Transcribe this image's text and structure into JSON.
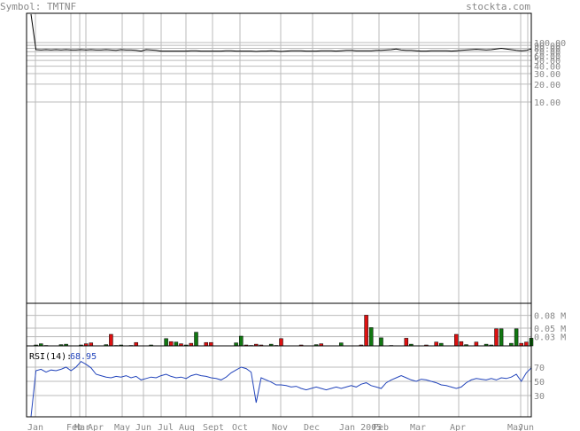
{
  "header": {
    "symbol_label": "Symbol: TMTNF",
    "site": "stockta.com"
  },
  "colors": {
    "price_line": "#000000",
    "rsi_line": "#2244bb",
    "rsi_value": "#2244bb",
    "vol_up": "#117711",
    "vol_down": "#dd1111",
    "grid": "#bbbbbb",
    "frame": "#000000",
    "label": "#888888"
  },
  "chart_data": [
    {
      "type": "line",
      "panel": "price",
      "scale": "log",
      "y_ticks": [
        "100.00",
        "90.00",
        "80.00",
        "70.00",
        "60.00",
        "50.00",
        "40.00",
        "30.00",
        "20.00",
        "10.00"
      ],
      "x_labels": [
        "Jan",
        "Feb",
        "Mar",
        "Apr",
        "May",
        "Jun",
        "Jul",
        "Aug",
        "Sept",
        "Oct",
        "Nov",
        "Dec",
        "Jan 2005",
        "Feb",
        "Mar",
        "Apr",
        "May",
        "Jun"
      ],
      "grid": true,
      "series": [
        {
          "values": [
            300,
            76,
            75,
            76,
            75,
            76,
            75,
            76,
            75,
            75,
            76,
            75,
            76,
            75,
            75,
            76,
            75,
            74,
            76,
            75,
            75,
            74,
            72,
            76,
            75,
            74,
            72,
            72,
            72,
            72,
            72,
            72,
            73,
            73,
            72,
            72,
            72,
            72,
            72,
            73,
            73,
            72,
            72,
            72,
            72,
            71,
            72,
            72,
            73,
            72,
            71,
            72,
            73,
            73,
            73,
            72,
            72,
            72,
            73,
            73,
            73,
            72,
            73,
            74,
            74,
            73,
            73,
            73,
            73,
            74,
            74,
            75,
            76,
            78,
            75,
            74,
            74,
            73,
            72,
            72,
            73,
            73,
            73,
            73,
            72,
            73,
            74,
            75,
            76,
            77,
            76,
            75,
            76,
            78,
            80,
            78,
            76,
            74,
            73,
            74,
            78
          ]
        }
      ]
    },
    {
      "type": "bar",
      "panel": "volume",
      "y_ticks": [
        "0.08 M",
        "0.05 M",
        "0.03 M"
      ],
      "ylim": [
        0,
        0.1
      ],
      "values": [
        0,
        0.002,
        0.005,
        0.001,
        0,
        0,
        0.003,
        0.004,
        0,
        0,
        0.002,
        0.005,
        0.007,
        0,
        0,
        0.003,
        0.027,
        0.001,
        0.002,
        0,
        0.001,
        0.008,
        0,
        0,
        0.002,
        0,
        0,
        0.017,
        0.01,
        0.009,
        0.005,
        0.002,
        0.006,
        0.032,
        0,
        0.008,
        0.008,
        0,
        0,
        0,
        0,
        0.007,
        0.023,
        0.002,
        0.001,
        0.004,
        0.002,
        0,
        0.004,
        0.001,
        0.017,
        0,
        0,
        0,
        0.002,
        0,
        0,
        0.003,
        0.005,
        0,
        0,
        0,
        0.007,
        0,
        0,
        0,
        0.002,
        0.072,
        0.043,
        0,
        0.019,
        0,
        0.001,
        0,
        0,
        0.018,
        0.004,
        0,
        0,
        0.002,
        0,
        0.009,
        0.006,
        0,
        0,
        0.027,
        0.01,
        0.003,
        0,
        0.009,
        0,
        0.004,
        0.002,
        0.04,
        0.04,
        0,
        0.006,
        0.04,
        0.006,
        0.009,
        0.018
      ],
      "up": [
        1,
        1,
        1,
        0,
        0,
        0,
        1,
        1,
        0,
        0,
        1,
        0,
        0,
        0,
        0,
        1,
        0,
        1,
        1,
        0,
        1,
        0,
        0,
        0,
        1,
        0,
        0,
        1,
        0,
        1,
        0,
        1,
        0,
        1,
        0,
        0,
        0,
        0,
        0,
        0,
        0,
        1,
        1,
        0,
        1,
        0,
        0,
        0,
        1,
        0,
        0,
        0,
        0,
        0,
        0,
        0,
        0,
        1,
        0,
        0,
        0,
        0,
        1,
        0,
        0,
        0,
        0,
        0,
        1,
        0,
        1,
        0,
        1,
        0,
        0,
        0,
        1,
        0,
        0,
        0,
        0,
        0,
        1,
        0,
        0,
        0,
        0,
        1,
        0,
        0,
        0,
        1,
        1,
        0,
        1,
        0,
        1,
        1,
        0,
        0,
        1
      ]
    },
    {
      "type": "line",
      "panel": "rsi",
      "label": "RSI(14):",
      "value_label": "68.95",
      "y_ticks": [
        "70",
        "50",
        "30"
      ],
      "ylim": [
        0,
        100
      ],
      "series": [
        {
          "values": [
            0,
            65,
            67,
            63,
            66,
            65,
            67,
            70,
            65,
            70,
            78,
            74,
            69,
            60,
            58,
            56,
            55,
            57,
            56,
            58,
            55,
            57,
            52,
            54,
            56,
            55,
            58,
            60,
            57,
            55,
            56,
            54,
            58,
            60,
            58,
            57,
            55,
            54,
            52,
            56,
            62,
            66,
            70,
            68,
            63,
            20,
            55,
            52,
            49,
            45,
            45,
            44,
            42,
            43,
            40,
            38,
            40,
            42,
            40,
            38,
            40,
            42,
            40,
            42,
            44,
            42,
            46,
            48,
            44,
            42,
            40,
            48,
            52,
            55,
            58,
            55,
            52,
            50,
            53,
            52,
            50,
            48,
            45,
            44,
            42,
            40,
            42,
            48,
            52,
            54,
            53,
            52,
            54,
            52,
            55,
            54,
            56,
            60,
            50,
            62,
            68.95
          ]
        }
      ]
    }
  ]
}
